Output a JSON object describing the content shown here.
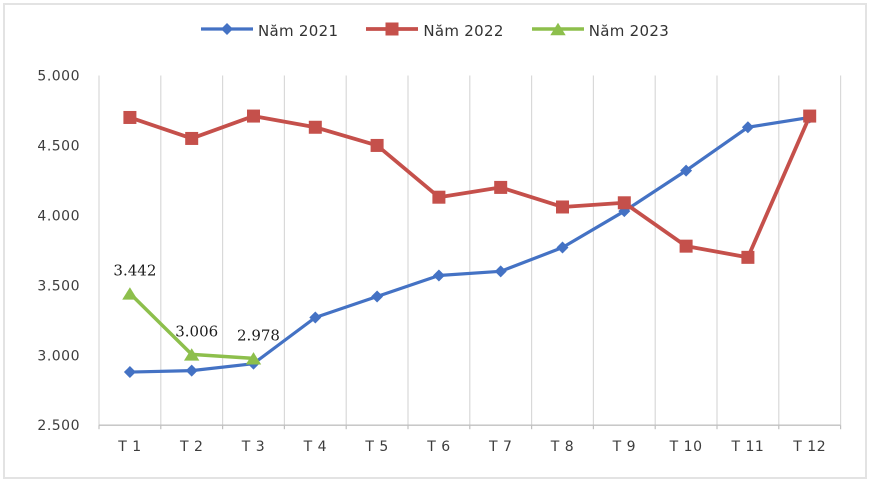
{
  "chart_data": {
    "type": "line",
    "categories": [
      "T 1",
      "T 2",
      "T 3",
      "T 4",
      "T 5",
      "T 6",
      "T 7",
      "T 8",
      "T 9",
      "T 10",
      "T 11",
      "T 12"
    ],
    "series": [
      {
        "name": "Năm 2021",
        "color": "#4472C4",
        "marker": "diamond",
        "line_width": 3.2,
        "values": [
          2880,
          2890,
          2940,
          3270,
          3420,
          3570,
          3600,
          3770,
          4030,
          4320,
          4630,
          4700
        ]
      },
      {
        "name": "Năm 2022",
        "color": "#C5504B",
        "marker": "square",
        "line_width": 3.8,
        "values": [
          4700,
          4550,
          4710,
          4630,
          4500,
          4130,
          4200,
          4060,
          4090,
          3780,
          3700,
          4710
        ]
      },
      {
        "name": "Năm 2023",
        "color": "#8DBF4C",
        "marker": "triangle",
        "line_width": 3.5,
        "values": [
          3442,
          3006,
          2978
        ],
        "data_labels": [
          "3.442",
          "3.006",
          "2.978"
        ]
      }
    ],
    "title": "",
    "xlabel": "",
    "ylabel": "",
    "ylim": [
      2500,
      5000
    ],
    "ytick_step": 500,
    "ytick_labels": [
      "5.000",
      "4.500",
      "4.000",
      "3.500",
      "3.000",
      "2.500"
    ],
    "grid": "vertical-only",
    "legend_position": "top",
    "style": {
      "grid_color": "#d9d9d9",
      "axis_color": "#c0c0c0",
      "text_color": "#3d3d3d",
      "background": "#ffffff",
      "frame_border": "#e3e3e3"
    }
  }
}
